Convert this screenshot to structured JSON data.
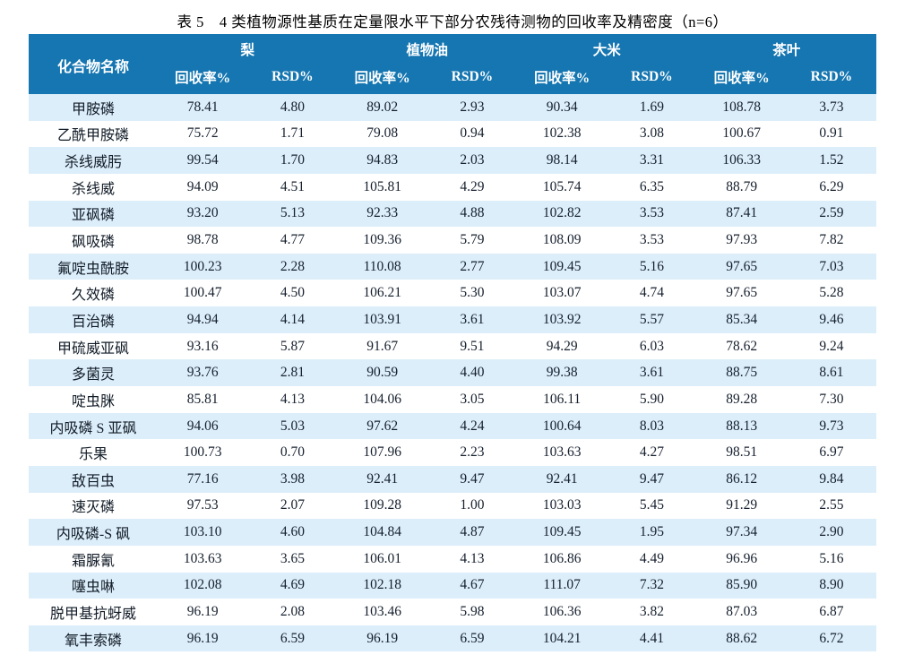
{
  "title": "表 5　4 类植物源性基质在定量限水平下部分农残待测物的回收率及精密度（n=6）",
  "colors": {
    "header_bg": "#1576b1",
    "header_text": "#ffffff",
    "stripe_bg": "#dceefa",
    "body_text": "#16202e"
  },
  "table": {
    "compound_header": "化合物名称",
    "groups": [
      {
        "label": "梨"
      },
      {
        "label": "植物油"
      },
      {
        "label": "大米"
      },
      {
        "label": "茶叶"
      }
    ],
    "sub_headers": {
      "recovery": "回收率%",
      "rsd": "RSD%"
    },
    "rows": [
      {
        "compound": "甲胺磷",
        "values": [
          "78.41",
          "4.80",
          "89.02",
          "2.93",
          "90.34",
          "1.69",
          "108.78",
          "3.73"
        ]
      },
      {
        "compound": "乙酰甲胺磷",
        "values": [
          "75.72",
          "1.71",
          "79.08",
          "0.94",
          "102.38",
          "3.08",
          "100.67",
          "0.91"
        ]
      },
      {
        "compound": "杀线威肟",
        "values": [
          "99.54",
          "1.70",
          "94.83",
          "2.03",
          "98.14",
          "3.31",
          "106.33",
          "1.52"
        ]
      },
      {
        "compound": "杀线威",
        "values": [
          "94.09",
          "4.51",
          "105.81",
          "4.29",
          "105.74",
          "6.35",
          "88.79",
          "6.29"
        ]
      },
      {
        "compound": "亚砜磷",
        "values": [
          "93.20",
          "5.13",
          "92.33",
          "4.88",
          "102.82",
          "3.53",
          "87.41",
          "2.59"
        ]
      },
      {
        "compound": "砜吸磷",
        "values": [
          "98.78",
          "4.77",
          "109.36",
          "5.79",
          "108.09",
          "3.53",
          "97.93",
          "7.82"
        ]
      },
      {
        "compound": "氟啶虫酰胺",
        "values": [
          "100.23",
          "2.28",
          "110.08",
          "2.77",
          "109.45",
          "5.16",
          "97.65",
          "7.03"
        ]
      },
      {
        "compound": "久效磷",
        "values": [
          "100.47",
          "4.50",
          "106.21",
          "5.30",
          "103.07",
          "4.74",
          "97.65",
          "5.28"
        ]
      },
      {
        "compound": "百治磷",
        "values": [
          "94.94",
          "4.14",
          "103.91",
          "3.61",
          "103.92",
          "5.57",
          "85.34",
          "9.46"
        ]
      },
      {
        "compound": "甲硫威亚砜",
        "values": [
          "93.16",
          "5.87",
          "91.67",
          "9.51",
          "94.29",
          "6.03",
          "78.62",
          "9.24"
        ]
      },
      {
        "compound": "多菌灵",
        "values": [
          "93.76",
          "2.81",
          "90.59",
          "4.40",
          "99.38",
          "3.61",
          "88.75",
          "8.61"
        ]
      },
      {
        "compound": "啶虫脒",
        "values": [
          "85.81",
          "4.13",
          "104.06",
          "3.05",
          "106.11",
          "5.90",
          "89.28",
          "7.30"
        ]
      },
      {
        "compound": "内吸磷 S 亚砜",
        "values": [
          "94.06",
          "5.03",
          "97.62",
          "4.24",
          "100.64",
          "8.03",
          "88.13",
          "9.73"
        ]
      },
      {
        "compound": "乐果",
        "values": [
          "100.73",
          "0.70",
          "107.96",
          "2.23",
          "103.63",
          "4.27",
          "98.51",
          "6.97"
        ]
      },
      {
        "compound": "敌百虫",
        "values": [
          "77.16",
          "3.98",
          "92.41",
          "9.47",
          "92.41",
          "9.47",
          "86.12",
          "9.84"
        ]
      },
      {
        "compound": "速灭磷",
        "values": [
          "97.53",
          "2.07",
          "109.28",
          "1.00",
          "103.03",
          "5.45",
          "91.29",
          "2.55"
        ]
      },
      {
        "compound": "内吸磷-S 砜",
        "values": [
          "103.10",
          "4.60",
          "104.84",
          "4.87",
          "109.45",
          "1.95",
          "97.34",
          "2.90"
        ]
      },
      {
        "compound": "霜脲氰",
        "values": [
          "103.63",
          "3.65",
          "106.01",
          "4.13",
          "106.86",
          "4.49",
          "96.96",
          "5.16"
        ]
      },
      {
        "compound": "噻虫啉",
        "values": [
          "102.08",
          "4.69",
          "102.18",
          "4.67",
          "111.07",
          "7.32",
          "85.90",
          "8.90"
        ]
      },
      {
        "compound": "脱甲基抗蚜威",
        "values": [
          "96.19",
          "2.08",
          "103.46",
          "5.98",
          "106.36",
          "3.82",
          "87.03",
          "6.87"
        ]
      },
      {
        "compound": "氧丰索磷",
        "values": [
          "96.19",
          "6.59",
          "96.19",
          "6.59",
          "104.21",
          "4.41",
          "88.62",
          "6.72"
        ]
      }
    ]
  }
}
